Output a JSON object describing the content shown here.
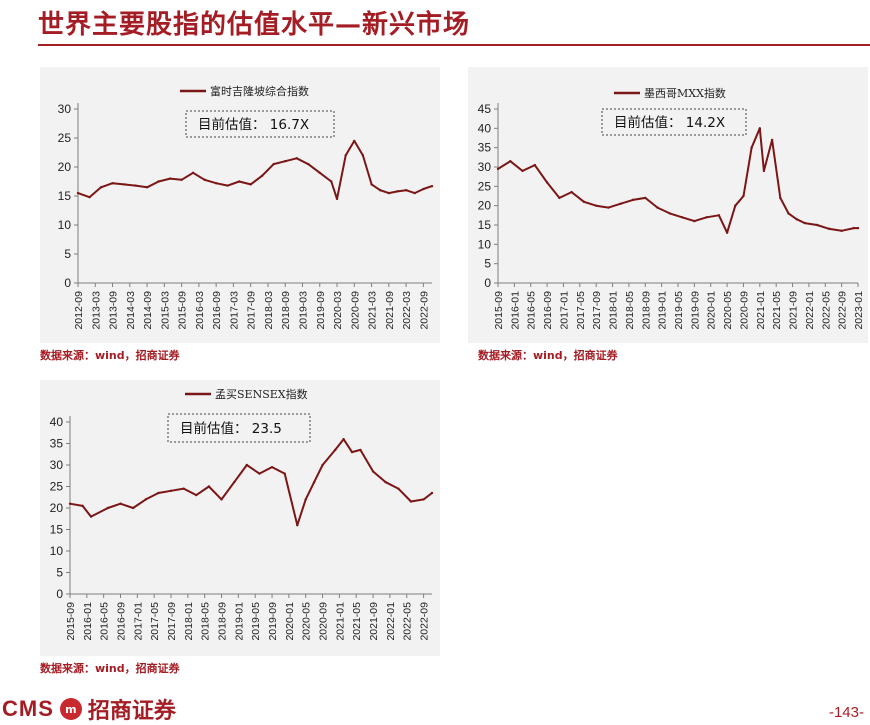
{
  "page": {
    "title": "世界主要股指的估值水平—新兴市场",
    "page_number": "-143-",
    "logo_text": "CMS",
    "logo_mark": "m",
    "logo_company": "招商证券"
  },
  "colors": {
    "brand": "#a51d24",
    "series": "#7b1616",
    "panel_bg": "#f2f2f2"
  },
  "chart_data": [
    {
      "type": "line",
      "legend": "富时吉隆坡综合指数",
      "annotation": "目前估值：  16.7X",
      "source": "数据来源：wind，招商证券",
      "ylim": [
        0,
        30
      ],
      "yticks": [
        0,
        5,
        10,
        15,
        20,
        25,
        30
      ],
      "x_tick_labels": [
        "2012-09",
        "2013-03",
        "2013-09",
        "2014-03",
        "2014-09",
        "2015-03",
        "2015-09",
        "2016-03",
        "2016-09",
        "2017-03",
        "2017-09",
        "2018-03",
        "2018-09",
        "2019-03",
        "2019-09",
        "2020-03",
        "2020-09",
        "2021-03",
        "2021-09",
        "2022-03",
        "2022-09"
      ],
      "x": [
        "2012-09",
        "2013-01",
        "2013-05",
        "2013-09",
        "2014-01",
        "2014-05",
        "2014-09",
        "2015-01",
        "2015-05",
        "2015-09",
        "2016-01",
        "2016-05",
        "2016-09",
        "2017-01",
        "2017-05",
        "2017-09",
        "2018-01",
        "2018-05",
        "2018-09",
        "2019-01",
        "2019-05",
        "2019-09",
        "2020-01",
        "2020-03",
        "2020-06",
        "2020-09",
        "2020-12",
        "2021-03",
        "2021-06",
        "2021-09",
        "2021-12",
        "2022-03",
        "2022-06",
        "2022-09",
        "2022-12"
      ],
      "series": [
        {
          "values": [
            15.5,
            14.8,
            16.5,
            17.2,
            17.0,
            16.8,
            16.5,
            17.5,
            18.0,
            17.8,
            19.0,
            17.8,
            17.2,
            16.8,
            17.5,
            17.0,
            18.5,
            20.5,
            21.0,
            21.5,
            20.5,
            19.0,
            17.5,
            14.5,
            22.0,
            24.5,
            22.0,
            17.0,
            16.0,
            15.5,
            15.8,
            16.0,
            15.5,
            16.2,
            16.7
          ]
        }
      ]
    },
    {
      "type": "line",
      "legend": "墨西哥MXX指数",
      "annotation": "目前估值：  14.2X",
      "source": "数据来源：wind，招商证券",
      "ylim": [
        0,
        45
      ],
      "yticks": [
        0,
        5,
        10,
        15,
        20,
        25,
        30,
        35,
        40,
        45
      ],
      "x_tick_labels": [
        "2015-09",
        "2016-01",
        "2016-05",
        "2016-09",
        "2017-01",
        "2017-05",
        "2017-09",
        "2018-01",
        "2018-05",
        "2018-09",
        "2019-01",
        "2019-05",
        "2019-09",
        "2020-01",
        "2020-05",
        "2020-09",
        "2021-01",
        "2021-05",
        "2021-09",
        "2022-01",
        "2022-05",
        "2022-09",
        "2023-01"
      ],
      "x": [
        "2015-09",
        "2015-12",
        "2016-03",
        "2016-06",
        "2016-09",
        "2016-12",
        "2017-03",
        "2017-06",
        "2017-09",
        "2017-12",
        "2018-03",
        "2018-06",
        "2018-09",
        "2018-12",
        "2019-03",
        "2019-06",
        "2019-09",
        "2019-12",
        "2020-03",
        "2020-05",
        "2020-07",
        "2020-09",
        "2020-11",
        "2021-01",
        "2021-02",
        "2021-04",
        "2021-06",
        "2021-08",
        "2021-10",
        "2021-12",
        "2022-03",
        "2022-06",
        "2022-09",
        "2022-12",
        "2023-01"
      ],
      "series": [
        {
          "values": [
            29.5,
            31.5,
            29.0,
            30.5,
            26.0,
            22.0,
            23.5,
            21.0,
            20.0,
            19.5,
            20.5,
            21.5,
            22.0,
            19.5,
            18.0,
            17.0,
            16.0,
            17.0,
            17.5,
            13.0,
            20.0,
            22.5,
            35.0,
            40.0,
            29.0,
            37.0,
            22.0,
            18.0,
            16.5,
            15.5,
            15.0,
            14.0,
            13.5,
            14.2,
            14.2
          ]
        }
      ]
    },
    {
      "type": "line",
      "legend": "孟买SENSEX指数",
      "annotation": "目前估值：  23.5",
      "source": "数据来源：wind，招商证券",
      "ylim": [
        0,
        40
      ],
      "yticks": [
        0,
        5,
        10,
        15,
        20,
        25,
        30,
        35,
        40
      ],
      "x_tick_labels": [
        "2015-09",
        "2016-01",
        "2016-05",
        "2016-09",
        "2017-01",
        "2017-05",
        "2017-09",
        "2018-01",
        "2018-05",
        "2018-09",
        "2019-01",
        "2019-05",
        "2019-09",
        "2020-01",
        "2020-05",
        "2020-09",
        "2021-01",
        "2021-05",
        "2021-09",
        "2022-01",
        "2022-05",
        "2022-09"
      ],
      "x": [
        "2015-09",
        "2015-12",
        "2016-02",
        "2016-06",
        "2016-09",
        "2016-12",
        "2017-03",
        "2017-06",
        "2017-09",
        "2017-12",
        "2018-03",
        "2018-06",
        "2018-09",
        "2018-12",
        "2019-03",
        "2019-06",
        "2019-09",
        "2019-12",
        "2020-03",
        "2020-05",
        "2020-07",
        "2020-09",
        "2020-12",
        "2021-02",
        "2021-04",
        "2021-06",
        "2021-09",
        "2021-12",
        "2022-03",
        "2022-06",
        "2022-09",
        "2022-11"
      ],
      "series": [
        {
          "values": [
            21.0,
            20.5,
            18.0,
            20.0,
            21.0,
            20.0,
            22.0,
            23.5,
            24.0,
            24.5,
            23.0,
            25.0,
            22.0,
            26.0,
            30.0,
            28.0,
            29.5,
            28.0,
            16.0,
            22.0,
            26.0,
            30.0,
            33.5,
            36.0,
            33.0,
            33.5,
            28.5,
            26.0,
            24.5,
            21.5,
            22.0,
            23.5
          ]
        }
      ]
    }
  ]
}
